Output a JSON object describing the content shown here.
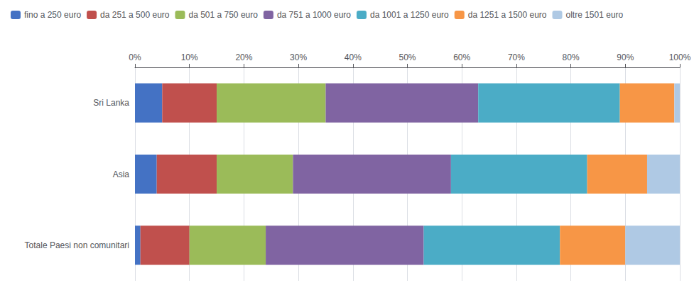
{
  "chart_data": {
    "type": "bar",
    "orientation": "horizontal",
    "stacked": true,
    "categories": [
      "Sri Lanka",
      "Asia",
      "Totale Paesi non comunitari"
    ],
    "series": [
      {
        "name": "fino a 250 euro",
        "color": "#4472C4",
        "values": [
          5,
          4,
          1
        ]
      },
      {
        "name": "da 251 a 500 euro",
        "color": "#C0504D",
        "values": [
          10,
          11,
          9
        ]
      },
      {
        "name": "da 501 a 750 euro",
        "color": "#9BBB59",
        "values": [
          20,
          14,
          14
        ]
      },
      {
        "name": "da 751 a 1000 euro",
        "color": "#8064A2",
        "values": [
          28,
          29,
          29
        ]
      },
      {
        "name": "da 1001 a 1250 euro",
        "color": "#4BACC6",
        "values": [
          26,
          25,
          25
        ]
      },
      {
        "name": "da 1251 a 1500 euro",
        "color": "#F79646",
        "values": [
          10,
          11,
          12
        ]
      },
      {
        "name": "oltre 1501 euro",
        "color": "#AFC9E4",
        "values": [
          1,
          6,
          10
        ]
      }
    ],
    "xlim": [
      0,
      100
    ],
    "xticks": [
      {
        "value": 0,
        "label": "0%"
      },
      {
        "value": 10,
        "label": "10%"
      },
      {
        "value": 20,
        "label": "20%"
      },
      {
        "value": 30,
        "label": "30%"
      },
      {
        "value": 40,
        "label": "40%"
      },
      {
        "value": 50,
        "label": "50%"
      },
      {
        "value": 60,
        "label": "60%"
      },
      {
        "value": 70,
        "label": "70%"
      },
      {
        "value": 80,
        "label": "80%"
      },
      {
        "value": 90,
        "label": "90%"
      },
      {
        "value": 100,
        "label": "100%"
      }
    ],
    "grid": true,
    "legend": "upper left"
  }
}
